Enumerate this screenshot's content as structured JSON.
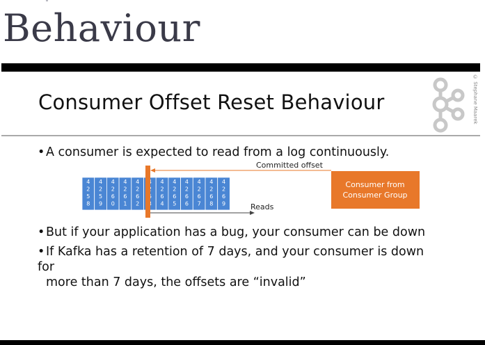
{
  "page": {
    "heading": "Behaviour"
  },
  "slide": {
    "title": "Consumer Offset Reset Behaviour",
    "credit": "© Stephane Maarek",
    "bullets": [
      "A consumer is expected to read from a log continuously.",
      "But if your application has a bug, your consumer can be down",
      "If Kafka has a retention of 7 days, and your consumer is down for",
      "more than 7 days, the offsets are “invalid”"
    ],
    "bullet_marker": "•"
  },
  "diagram": {
    "committed_label": "Committed offset",
    "reads_label": "Reads",
    "consumer_box": [
      "Consumer from",
      "Consumer Group"
    ],
    "offset_cells": [
      [
        "4",
        "2",
        "5",
        "8"
      ],
      [
        "4",
        "2",
        "5",
        "9"
      ],
      [
        "4",
        "2",
        "6",
        "0"
      ],
      [
        "4",
        "2",
        "6",
        "1"
      ],
      [
        "4",
        "2",
        "6",
        "2"
      ],
      [
        "4",
        "2",
        "6",
        "3"
      ],
      [
        "4",
        "2",
        "6",
        "4"
      ],
      [
        "4",
        "2",
        "6",
        "5"
      ],
      [
        "4",
        "2",
        "6",
        "6"
      ],
      [
        "4",
        "2",
        "6",
        "7"
      ],
      [
        "4",
        "2",
        "6",
        "8"
      ],
      [
        "4",
        "2",
        "6",
        "9"
      ]
    ],
    "colors": {
      "cell": "#4a86d4",
      "marker": "#e8782a",
      "consumer_box": "#e8782a",
      "arrow": "#e8782a"
    }
  }
}
